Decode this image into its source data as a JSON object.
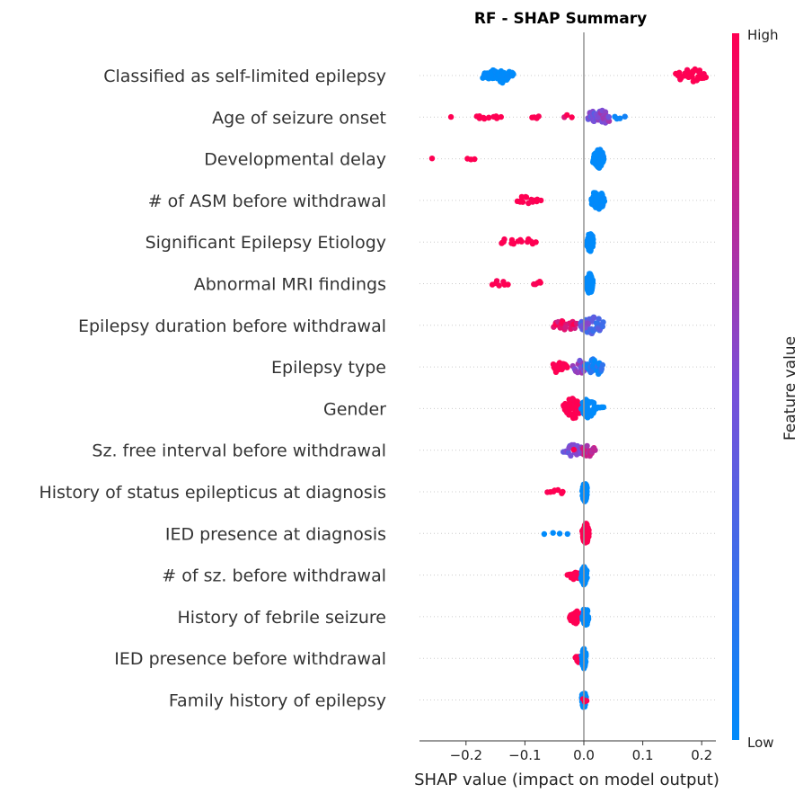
{
  "chart_data": {
    "type": "scatter",
    "title": "RF - SHAP Summary",
    "xlabel": "SHAP value (impact on model output)",
    "ylabel": "",
    "xlim": [
      -0.28,
      0.225
    ],
    "x_ticks": [
      -0.2,
      -0.1,
      0.0,
      0.1,
      0.2
    ],
    "x_tick_labels": [
      "−0.2",
      "−0.1",
      "0.0",
      "0.1",
      "0.2"
    ],
    "colorbar": {
      "label": "Feature value",
      "high_label": "High",
      "low_label": "Low",
      "low_color": "#008bfb",
      "mid_color": "#7a4fd8",
      "high_color": "#ff0052"
    },
    "features": [
      {
        "name": "Classified as self-limited epilepsy",
        "clusters": [
          {
            "x": -0.175,
            "x2": -0.115,
            "n": 54,
            "spread": 0.55,
            "color": 0
          },
          {
            "x": 0.155,
            "x2": 0.21,
            "n": 34,
            "spread": 0.5,
            "color": 1
          }
        ]
      },
      {
        "name": "Age of seizure onset",
        "clusters": [
          {
            "x": -0.23,
            "x2": -0.22,
            "n": 1,
            "spread": 0.05,
            "color": 1
          },
          {
            "x": -0.185,
            "x2": -0.14,
            "n": 11,
            "spread": 0.2,
            "color": 1
          },
          {
            "x": -0.09,
            "x2": -0.075,
            "n": 4,
            "spread": 0.2,
            "color": 1
          },
          {
            "x": -0.035,
            "x2": -0.02,
            "n": 3,
            "spread": 0.2,
            "color": 0.9
          },
          {
            "x": 0.005,
            "x2": 0.025,
            "n": 18,
            "spread": 0.45,
            "color": 0.45
          },
          {
            "x": 0.02,
            "x2": 0.045,
            "n": 24,
            "spread": 0.6,
            "color": 0.55
          },
          {
            "x": 0.05,
            "x2": 0.07,
            "n": 4,
            "spread": 0.2,
            "color": 0.05
          }
        ]
      },
      {
        "name": "Developmental delay",
        "clusters": [
          {
            "x": -0.26,
            "x2": -0.255,
            "n": 1,
            "spread": 0.05,
            "color": 1
          },
          {
            "x": -0.198,
            "x2": -0.185,
            "n": 3,
            "spread": 0.1,
            "color": 1
          },
          {
            "x": 0.015,
            "x2": 0.035,
            "n": 72,
            "spread": 0.7,
            "color": 0
          }
        ]
      },
      {
        "name": "# of ASM before withdrawal",
        "clusters": [
          {
            "x": -0.118,
            "x2": -0.07,
            "n": 14,
            "spread": 0.3,
            "color": 1
          },
          {
            "x": 0.012,
            "x2": 0.035,
            "n": 70,
            "spread": 0.7,
            "color": 0
          }
        ]
      },
      {
        "name": "Significant Epilepsy Etiology",
        "clusters": [
          {
            "x": -0.148,
            "x2": -0.078,
            "n": 16,
            "spread": 0.3,
            "color": 1
          },
          {
            "x": 0.005,
            "x2": 0.016,
            "n": 80,
            "spread": 0.75,
            "color": 0
          }
        ]
      },
      {
        "name": "Abnormal MRI findings",
        "clusters": [
          {
            "x": -0.158,
            "x2": -0.125,
            "n": 7,
            "spread": 0.25,
            "color": 1
          },
          {
            "x": -0.085,
            "x2": -0.072,
            "n": 5,
            "spread": 0.2,
            "color": 1
          },
          {
            "x": 0.004,
            "x2": 0.016,
            "n": 80,
            "spread": 0.75,
            "color": 0
          }
        ]
      },
      {
        "name": "Epilepsy duration before withdrawal",
        "clusters": [
          {
            "x": -0.055,
            "x2": -0.01,
            "n": 26,
            "spread": 0.4,
            "color": 0.92
          },
          {
            "x": -0.01,
            "x2": 0.035,
            "n": 40,
            "spread": 0.65,
            "color": 0.3
          },
          {
            "x": -0.005,
            "x2": 0.008,
            "n": 10,
            "spread": 0.3,
            "color": 0.5
          }
        ]
      },
      {
        "name": "Epilepsy type",
        "clusters": [
          {
            "x": -0.055,
            "x2": -0.025,
            "n": 18,
            "spread": 0.45,
            "color": 1
          },
          {
            "x": -0.02,
            "x2": 0.008,
            "n": 16,
            "spread": 0.5,
            "color": 0.55
          },
          {
            "x": 0.0,
            "x2": 0.035,
            "n": 36,
            "spread": 0.6,
            "color": 0.1
          }
        ]
      },
      {
        "name": "Gender",
        "clusters": [
          {
            "x": -0.035,
            "x2": -0.005,
            "n": 56,
            "spread": 0.8,
            "color": 1
          },
          {
            "x": -0.005,
            "x2": 0.02,
            "n": 38,
            "spread": 0.7,
            "color": 0
          },
          {
            "x": 0.02,
            "x2": 0.035,
            "n": 6,
            "spread": 0.3,
            "color": 0
          }
        ]
      },
      {
        "name": "Sz. free interval before withdrawal",
        "clusters": [
          {
            "x": -0.035,
            "x2": 0.0,
            "n": 26,
            "spread": 0.45,
            "color": 0.5
          },
          {
            "x": -0.005,
            "x2": 0.02,
            "n": 24,
            "spread": 0.45,
            "color": 0.75
          },
          {
            "x": -0.02,
            "x2": -0.015,
            "n": 1,
            "spread": 0.05,
            "color": 1
          }
        ]
      },
      {
        "name": "History of status epilepticus at diagnosis",
        "clusters": [
          {
            "x": -0.065,
            "x2": -0.032,
            "n": 7,
            "spread": 0.2,
            "color": 1
          },
          {
            "x": -0.003,
            "x2": 0.006,
            "n": 90,
            "spread": 0.75,
            "color": 0
          }
        ]
      },
      {
        "name": "IED presence at diagnosis",
        "clusters": [
          {
            "x": -0.068,
            "x2": -0.04,
            "n": 3,
            "spread": 0.15,
            "color": 0
          },
          {
            "x": -0.03,
            "x2": -0.025,
            "n": 1,
            "spread": 0.05,
            "color": 0
          },
          {
            "x": -0.003,
            "x2": 0.009,
            "n": 90,
            "spread": 0.75,
            "color": 1
          }
        ]
      },
      {
        "name": "# of sz. before withdrawal",
        "clusters": [
          {
            "x": -0.028,
            "x2": -0.005,
            "n": 16,
            "spread": 0.35,
            "color": 1
          },
          {
            "x": -0.005,
            "x2": 0.006,
            "n": 60,
            "spread": 0.75,
            "color": 0
          }
        ]
      },
      {
        "name": "History of febrile seizure",
        "clusters": [
          {
            "x": -0.025,
            "x2": -0.003,
            "n": 40,
            "spread": 0.5,
            "color": 1
          },
          {
            "x": -0.003,
            "x2": 0.008,
            "n": 50,
            "spread": 0.7,
            "color": 0
          }
        ]
      },
      {
        "name": "IED presence before withdrawal",
        "clusters": [
          {
            "x": -0.015,
            "x2": -0.004,
            "n": 10,
            "spread": 0.3,
            "color": 1
          },
          {
            "x": -0.004,
            "x2": 0.004,
            "n": 70,
            "spread": 0.75,
            "color": 0
          }
        ]
      },
      {
        "name": "Family history of epilepsy",
        "clusters": [
          {
            "x": -0.004,
            "x2": 0.004,
            "n": 60,
            "spread": 0.7,
            "color": 0
          },
          {
            "x": -0.002,
            "x2": 0.005,
            "n": 3,
            "spread": 0.2,
            "color": 1
          }
        ]
      }
    ]
  }
}
